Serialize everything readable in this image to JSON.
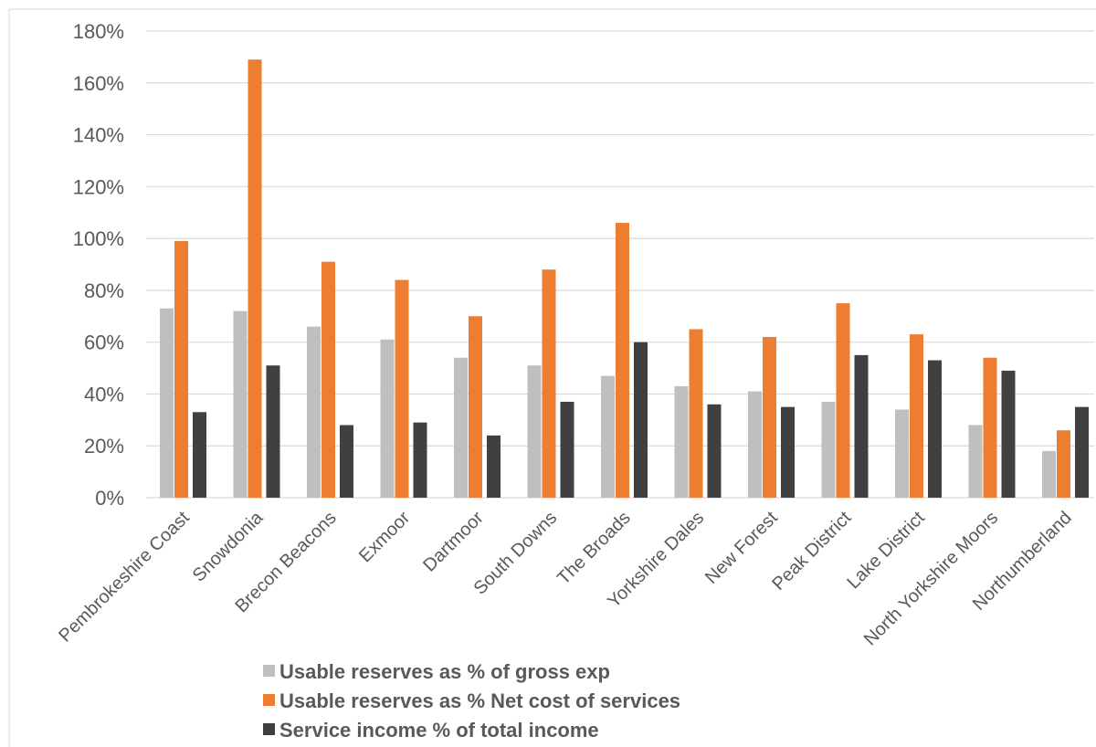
{
  "chart_data": {
    "type": "bar",
    "categories": [
      "Pembrokeshire Coast",
      "Snowdonia",
      "Brecon Beacons",
      "Exmoor",
      "Dartmoor",
      "South Downs",
      "The Broads",
      "Yorkshire Dales",
      "New Forest",
      "Peak District",
      "Lake District",
      "North Yorkshire Moors",
      "Northumberland"
    ],
    "series": [
      {
        "name": "Usable reserves as % of gross exp",
        "color": "#bfbfbf",
        "values": [
          73,
          72,
          66,
          61,
          54,
          51,
          47,
          43,
          41,
          37,
          34,
          28,
          18
        ]
      },
      {
        "name": "Usable reserves as % Net cost of services",
        "color": "#ed7d31",
        "values": [
          99,
          169,
          91,
          84,
          70,
          88,
          106,
          65,
          62,
          75,
          63,
          54,
          26
        ]
      },
      {
        "name": "Service income % of total income",
        "color": "#404040",
        "values": [
          33,
          51,
          28,
          29,
          24,
          37,
          60,
          36,
          35,
          55,
          53,
          49,
          35
        ]
      }
    ],
    "yticks": [
      "0%",
      "20%",
      "40%",
      "60%",
      "80%",
      "100%",
      "120%",
      "140%",
      "160%",
      "180%"
    ],
    "ylim": [
      0,
      180
    ],
    "ytick_step": 20,
    "grid": true,
    "legend_position": "bottom",
    "title": "",
    "xlabel": "",
    "ylabel": ""
  }
}
